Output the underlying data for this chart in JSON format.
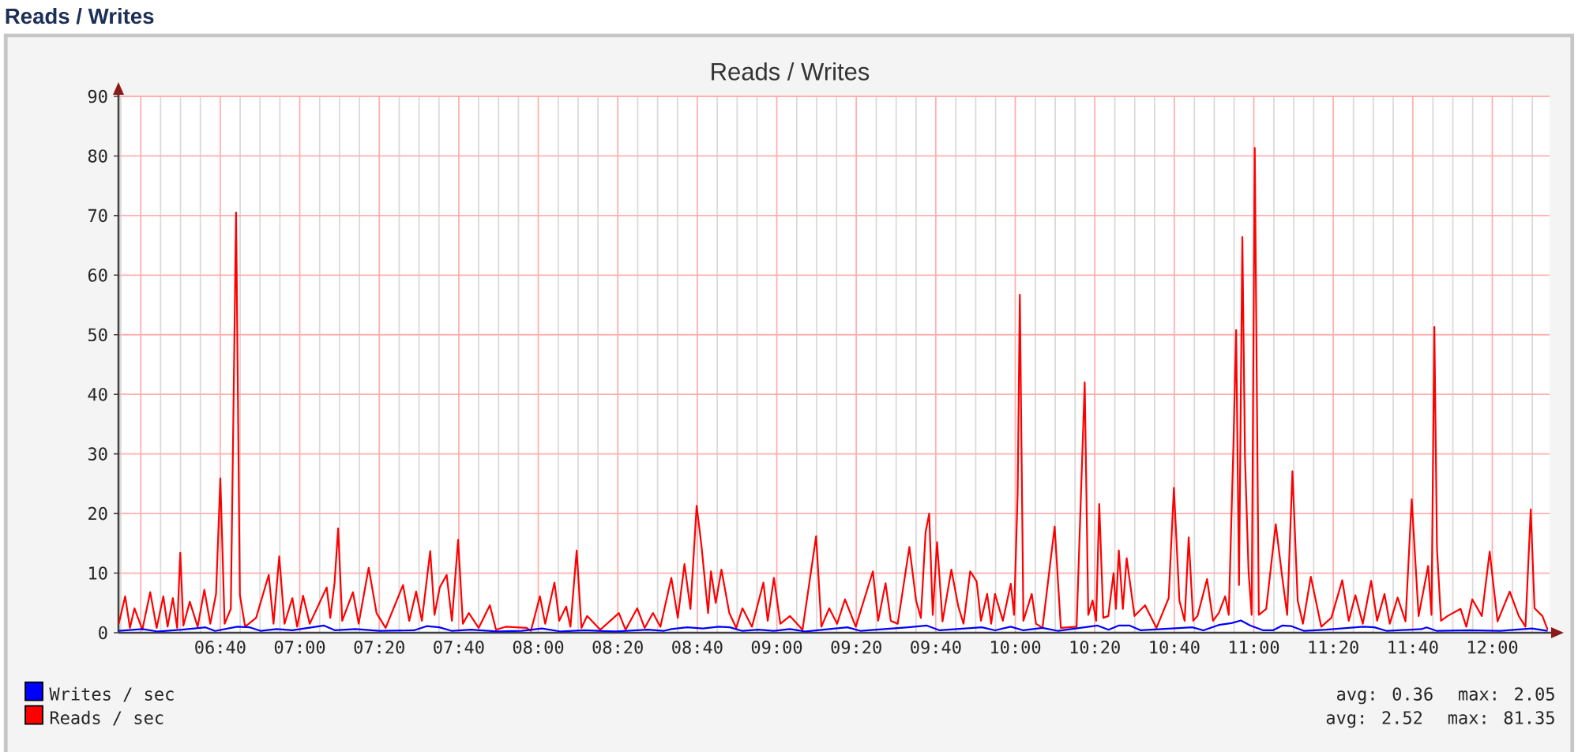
{
  "chart_data": {
    "type": "line",
    "title": "Reads / Writes",
    "subtitle": "Reads / Writes",
    "annotations": [
      "avg: 0.36",
      "max: 2.05",
      "avg: 2.52",
      "max: 81.35"
    ],
    "xlim": [
      6.24,
      12.24
    ],
    "ylim": [
      0,
      90
    ],
    "xticks": [
      {
        "value": 6.3333,
        "label": null
      },
      {
        "value": 6.6667,
        "label": "06:40"
      },
      {
        "value": 7,
        "label": "07:00"
      },
      {
        "value": 7.3333,
        "label": "07:20"
      },
      {
        "value": 7.6667,
        "label": "07:40"
      },
      {
        "value": 8,
        "label": "08:00"
      },
      {
        "value": 8.3333,
        "label": "08:20"
      },
      {
        "value": 8.6667,
        "label": "08:40"
      },
      {
        "value": 9,
        "label": "09:00"
      },
      {
        "value": 9.3333,
        "label": "09:20"
      },
      {
        "value": 9.6667,
        "label": "09:40"
      },
      {
        "value": 10,
        "label": "10:00"
      },
      {
        "value": 10.3333,
        "label": "10:20"
      },
      {
        "value": 10.6667,
        "label": "10:40"
      },
      {
        "value": 11,
        "label": "11:00"
      },
      {
        "value": 11.3333,
        "label": "11:20"
      },
      {
        "value": 11.6667,
        "label": "11:40"
      },
      {
        "value": 12,
        "label": "12:00"
      }
    ],
    "yticks": [
      0,
      10,
      20,
      30,
      40,
      50,
      60,
      70,
      80,
      90
    ],
    "grid": true,
    "legend": "bottom left",
    "series": [
      {
        "name": "Writes / sec",
        "color": "#0000ff",
        "x": [
          6.241,
          6.34,
          6.406,
          6.506,
          6.605,
          6.645,
          6.738,
          6.791,
          6.837,
          6.903,
          6.969,
          7.102,
          7.148,
          7.234,
          7.334,
          7.479,
          7.532,
          7.585,
          7.638,
          7.718,
          7.83,
          7.93,
          8.015,
          8.095,
          8.194,
          8.326,
          8.459,
          8.525,
          8.558,
          8.624,
          8.69,
          8.757,
          8.803,
          8.856,
          8.922,
          8.988,
          9.055,
          9.121,
          9.296,
          9.352,
          9.551,
          9.629,
          9.683,
          9.86,
          9.915,
          9.981,
          10.034,
          10.114,
          10.18,
          10.345,
          10.391,
          10.433,
          10.48,
          10.526,
          10.742,
          10.789,
          10.853,
          10.906,
          10.946,
          10.986,
          11.04,
          11.08,
          11.119,
          11.158,
          11.211,
          11.304,
          11.459,
          11.505,
          11.558,
          11.703,
          11.724,
          11.768,
          11.901,
          12.033,
          12.166,
          12.232
        ],
        "values": [
          0.3,
          0.6,
          0.2,
          0.5,
          0.9,
          0.3,
          1.0,
          0.9,
          0.3,
          0.6,
          0.4,
          1.2,
          0.4,
          0.6,
          0.3,
          0.4,
          1.1,
          0.9,
          0.3,
          0.5,
          0.2,
          0.3,
          0.7,
          0.2,
          0.4,
          0.2,
          0.5,
          0.3,
          0.6,
          0.9,
          0.7,
          1.0,
          0.9,
          0.3,
          0.5,
          0.3,
          0.6,
          0.2,
          0.9,
          0.3,
          0.9,
          1.2,
          0.4,
          0.9,
          0.4,
          1.0,
          0.4,
          0.8,
          0.3,
          1.2,
          0.5,
          1.2,
          1.2,
          0.4,
          0.9,
          0.4,
          1.3,
          1.6,
          2.05,
          1.2,
          0.4,
          0.4,
          1.2,
          1.1,
          0.3,
          0.5,
          1.0,
          0.9,
          0.3,
          0.6,
          0.9,
          0.3,
          0.4,
          0.3,
          0.7,
          0.3
        ]
      },
      {
        "name": "Reads / sec",
        "color": "#ff0000",
        "x": [
          6.241,
          6.268,
          6.288,
          6.307,
          6.34,
          6.373,
          6.4,
          6.428,
          6.446,
          6.468,
          6.486,
          6.499,
          6.512,
          6.539,
          6.572,
          6.6,
          6.625,
          6.649,
          6.667,
          6.685,
          6.711,
          6.733,
          6.749,
          6.771,
          6.817,
          6.87,
          6.89,
          6.914,
          6.936,
          6.969,
          6.989,
          7.014,
          7.042,
          7.113,
          7.128,
          7.146,
          7.161,
          7.178,
          7.223,
          7.247,
          7.289,
          7.322,
          7.36,
          7.433,
          7.459,
          7.488,
          7.512,
          7.547,
          7.565,
          7.587,
          7.616,
          7.638,
          7.664,
          7.684,
          7.709,
          7.75,
          7.797,
          7.823,
          7.863,
          7.951,
          7.969,
          8.007,
          8.029,
          8.068,
          8.088,
          8.117,
          8.135,
          8.161,
          8.181,
          8.205,
          8.26,
          8.338,
          8.366,
          8.415,
          8.446,
          8.481,
          8.512,
          8.558,
          8.585,
          8.613,
          8.638,
          8.664,
          8.684,
          8.712,
          8.724,
          8.744,
          8.768,
          8.801,
          8.83,
          8.856,
          8.896,
          8.944,
          8.962,
          8.988,
          9.015,
          9.055,
          9.108,
          9.165,
          9.187,
          9.22,
          9.253,
          9.286,
          9.331,
          9.403,
          9.425,
          9.456,
          9.478,
          9.507,
          9.556,
          9.584,
          9.604,
          9.624,
          9.639,
          9.654,
          9.672,
          9.695,
          9.732,
          9.761,
          9.783,
          9.811,
          9.838,
          9.856,
          9.882,
          9.899,
          9.915,
          9.948,
          9.981,
          9.995,
          10.01,
          10.019,
          10.034,
          10.069,
          10.087,
          10.114,
          10.165,
          10.191,
          10.257,
          10.291,
          10.306,
          10.324,
          10.339,
          10.352,
          10.369,
          10.39,
          10.412,
          10.422,
          10.434,
          10.451,
          10.467,
          10.5,
          10.544,
          10.592,
          10.643,
          10.665,
          10.688,
          10.71,
          10.727,
          10.746,
          10.764,
          10.804,
          10.829,
          10.853,
          10.88,
          10.895,
          10.915,
          10.926,
          10.938,
          10.952,
          10.963,
          10.978,
          10.991,
          11.004,
          11.021,
          11.052,
          11.092,
          11.118,
          11.14,
          11.162,
          11.184,
          11.206,
          11.239,
          11.283,
          11.325,
          11.371,
          11.398,
          11.426,
          11.457,
          11.492,
          11.517,
          11.548,
          11.57,
          11.603,
          11.636,
          11.662,
          11.691,
          11.731,
          11.745,
          11.757,
          11.768,
          11.785,
          11.812,
          11.867,
          11.891,
          11.916,
          11.956,
          11.989,
          12.022,
          12.073,
          12.111,
          12.139,
          12.161,
          12.177,
          12.21,
          12.232
        ],
        "values": [
          1.5,
          6.1,
          0.8,
          4.1,
          0.5,
          6.8,
          0.8,
          6.1,
          1.0,
          5.8,
          0.8,
          13.4,
          1.2,
          5.2,
          1.0,
          7.2,
          1.5,
          6.5,
          25.9,
          1.5,
          4.0,
          70.5,
          6.3,
          1.0,
          2.5,
          9.7,
          1.5,
          12.8,
          1.5,
          5.8,
          1.0,
          6.2,
          1.5,
          7.6,
          2.5,
          8.4,
          17.5,
          2.0,
          6.8,
          1.5,
          10.9,
          3.3,
          0.8,
          8.0,
          2.0,
          6.9,
          2.0,
          13.7,
          3.0,
          7.6,
          9.7,
          2.0,
          15.6,
          1.5,
          3.3,
          0.8,
          4.6,
          0.5,
          1.0,
          0.8,
          0.3,
          6.1,
          1.5,
          8.4,
          2.0,
          4.4,
          1.0,
          13.8,
          0.8,
          2.8,
          0.5,
          3.3,
          0.5,
          4.1,
          0.8,
          3.3,
          1.0,
          9.2,
          2.5,
          11.5,
          4.0,
          21.3,
          14.7,
          3.3,
          10.3,
          5.0,
          10.6,
          3.3,
          0.8,
          4.1,
          1.0,
          8.4,
          2.0,
          9.2,
          1.5,
          2.8,
          0.5,
          16.2,
          1.0,
          4.1,
          1.5,
          5.6,
          1.0,
          10.3,
          2.0,
          8.3,
          2.0,
          1.5,
          14.4,
          5.4,
          2.5,
          16.9,
          20.0,
          3.0,
          15.2,
          1.9,
          10.6,
          4.4,
          1.5,
          10.3,
          8.6,
          2.0,
          6.5,
          1.5,
          6.5,
          2.0,
          8.2,
          3.0,
          23.5,
          56.7,
          2.0,
          6.5,
          1.5,
          0.8,
          17.8,
          0.8,
          1.0,
          42.0,
          3.0,
          5.4,
          2.0,
          21.6,
          2.5,
          2.8,
          10.0,
          4.0,
          13.8,
          4.0,
          12.5,
          2.8,
          4.6,
          0.8,
          5.8,
          24.3,
          5.4,
          2.0,
          16.0,
          2.0,
          2.8,
          9.0,
          2.0,
          3.3,
          6.1,
          3.0,
          32.1,
          50.8,
          8.0,
          66.4,
          29.5,
          10.3,
          3.0,
          81.35,
          3.0,
          4.0,
          18.2,
          9.7,
          3.0,
          27.1,
          5.4,
          1.5,
          9.4,
          1.0,
          2.5,
          8.8,
          2.0,
          6.3,
          1.5,
          8.7,
          2.0,
          6.5,
          1.5,
          5.9,
          1.9,
          22.4,
          2.8,
          11.2,
          3.0,
          51.3,
          14.1,
          2.0,
          2.8,
          4.0,
          1.0,
          5.6,
          2.8,
          13.6,
          1.9,
          6.9,
          2.8,
          1.0,
          20.7,
          4.1,
          2.8,
          0.5
        ]
      }
    ]
  }
}
